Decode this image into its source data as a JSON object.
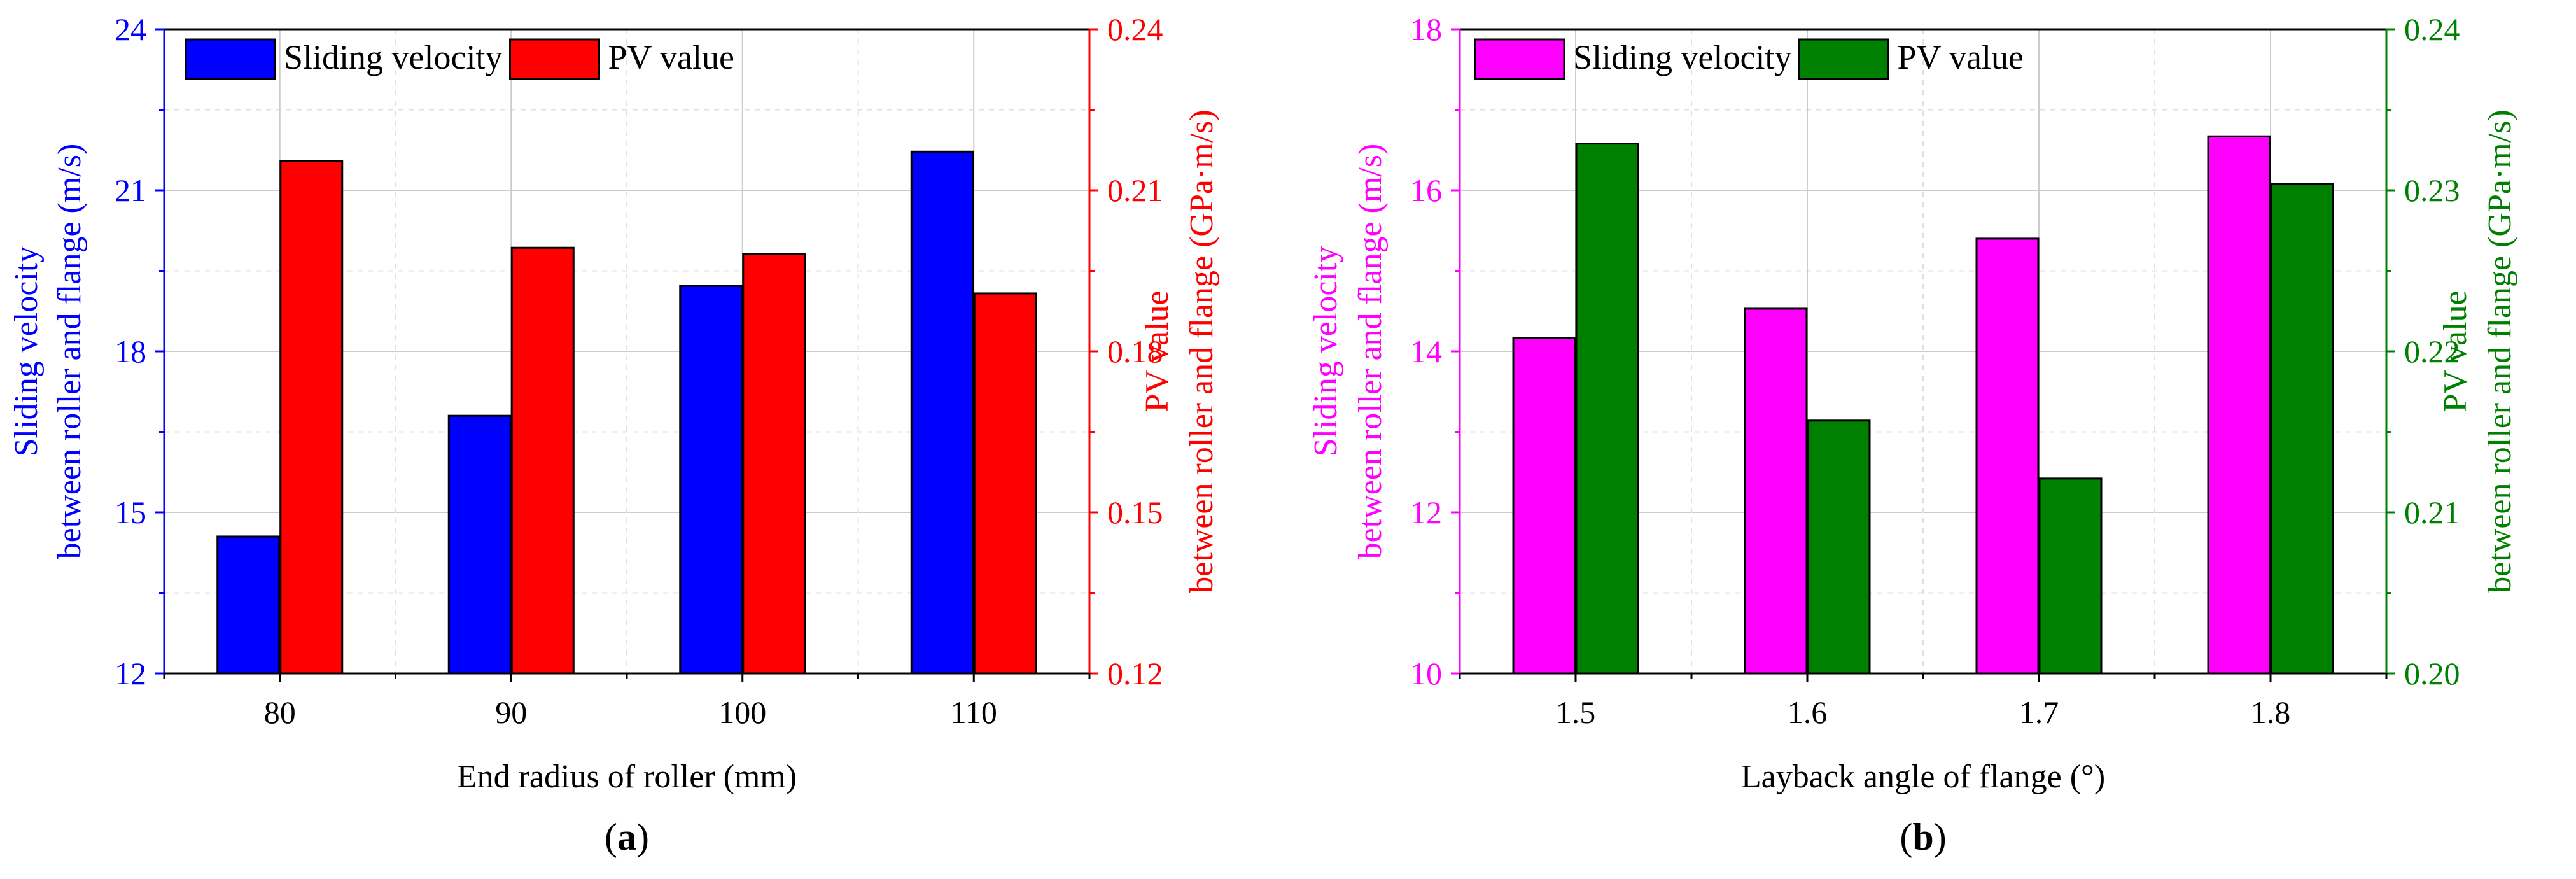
{
  "chart_data": [
    {
      "type": "bar",
      "panel_label": "a",
      "xlabel": "End radius of roller (mm)",
      "categories": [
        "80",
        "90",
        "100",
        "110"
      ],
      "left_axis": {
        "label_line1": "Sliding velocity",
        "label_line2": "between roller and flange (m/s)",
        "ylim": [
          12,
          24
        ],
        "ticks": [
          12,
          15,
          18,
          21,
          24
        ],
        "tick_labels": [
          "12",
          "15",
          "18",
          "21",
          "24"
        ],
        "color": "#0000ff"
      },
      "right_axis": {
        "label_line1": "PV value",
        "label_line2": "between roller and flange (GPa·m/s)",
        "ylim": [
          0.12,
          0.24
        ],
        "ticks": [
          0.12,
          0.15,
          0.18,
          0.21,
          0.24
        ],
        "tick_labels": [
          "0.12",
          "0.15",
          "0.18",
          "0.21",
          "0.24"
        ],
        "color": "#ff0000"
      },
      "series": [
        {
          "name": "Sliding velocity",
          "axis": "left",
          "color": "#0000ff",
          "values": [
            14.55,
            16.8,
            19.22,
            21.72
          ]
        },
        {
          "name": "PV value",
          "axis": "right",
          "color": "#ff0000",
          "values": [
            0.2155,
            0.1993,
            0.1981,
            0.1908
          ]
        }
      ],
      "legend_position": "top-left",
      "grid": true
    },
    {
      "type": "bar",
      "panel_label": "b",
      "xlabel": "Layback angle of flange (°)",
      "categories": [
        "1.5",
        "1.6",
        "1.7",
        "1.8"
      ],
      "left_axis": {
        "label_line1": "Sliding velocity",
        "label_line2": "between roller and flange (m/s)",
        "ylim": [
          10,
          18
        ],
        "ticks": [
          10,
          12,
          14,
          16,
          18
        ],
        "tick_labels": [
          "10",
          "12",
          "14",
          "16",
          "18"
        ],
        "color": "#ff00ff"
      },
      "right_axis": {
        "label_line1": "PV value",
        "label_line2": "between roller and flange (GPa·m/s)",
        "ylim": [
          0.2,
          0.24
        ],
        "ticks": [
          0.2,
          0.21,
          0.22,
          0.23,
          0.24
        ],
        "tick_labels": [
          "0.20",
          "0.21",
          "0.22",
          "0.23",
          "0.24"
        ],
        "color": "#008000"
      },
      "series": [
        {
          "name": "Sliding velocity",
          "axis": "left",
          "color": "#ff00ff",
          "values": [
            14.17,
            14.53,
            15.4,
            16.67
          ]
        },
        {
          "name": "PV value",
          "axis": "right",
          "color": "#008000",
          "values": [
            0.2329,
            0.2157,
            0.2121,
            0.2304
          ]
        }
      ],
      "legend_position": "top-left",
      "grid": true
    }
  ]
}
